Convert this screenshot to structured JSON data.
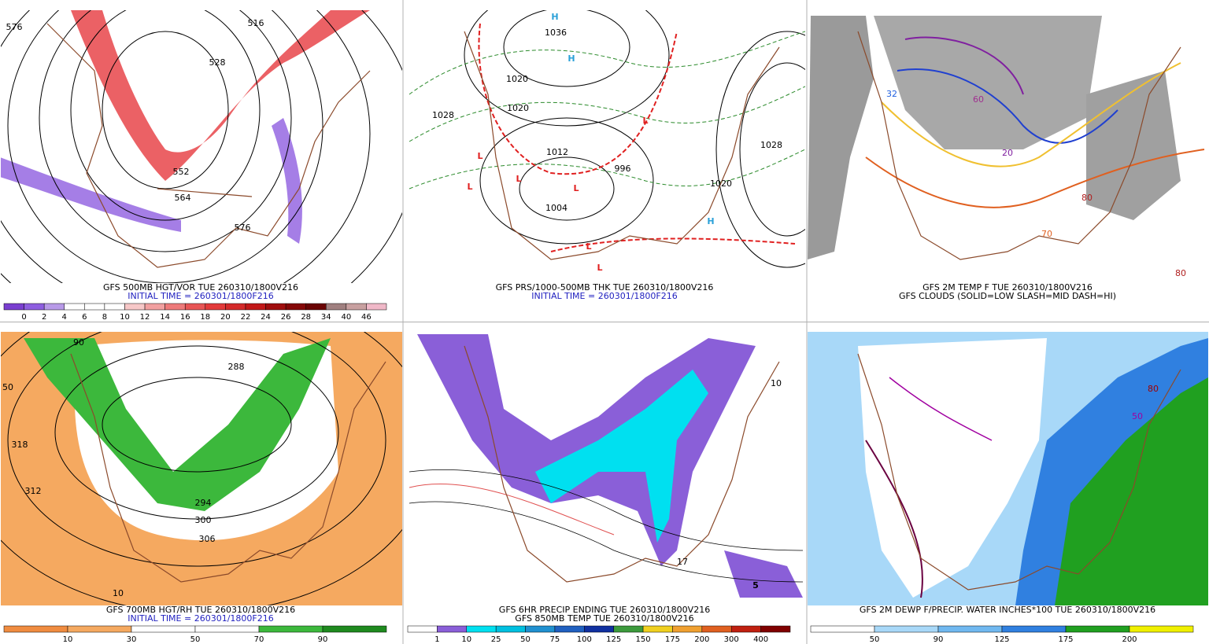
{
  "panels": [
    {
      "captions": [
        {
          "text": "GFS 500MB HGT/VOR TUE 260310/1800V216",
          "color": "#000000"
        },
        {
          "text": "INITIAL TIME = 260301/1800F216",
          "color": "#1f1fbf"
        }
      ],
      "colorbar": {
        "labels": [
          0,
          2,
          4,
          6,
          8,
          10,
          12,
          14,
          16,
          18,
          20,
          22,
          24,
          26,
          28,
          34,
          40,
          46
        ],
        "colors": [
          "#7a3fd0",
          "#8e5ee0",
          "#b89ae8",
          "#ffffff",
          "#ffffff",
          "#ffffff",
          "#f7c8c8",
          "#f2a0a0",
          "#ee7a7a",
          "#e85555",
          "#e33a3a",
          "#d42a2a",
          "#c21818",
          "#a00e0e",
          "#850808",
          "#6a0404",
          "#a08080",
          "#c8a0a0",
          "#f0b8c8"
        ]
      },
      "map_labels": [
        {
          "text": "576",
          "color": "#000000"
        },
        {
          "text": "516",
          "color": "#000000"
        },
        {
          "text": "528",
          "color": "#000000"
        },
        {
          "text": "552",
          "color": "#000000"
        },
        {
          "text": "564",
          "color": "#000000"
        },
        {
          "text": "576",
          "color": "#000000"
        }
      ]
    },
    {
      "captions": [
        {
          "text": "GFS PRS/1000-500MB THK TUE 260310/1800V216",
          "color": "#000000"
        },
        {
          "text": "INITIAL TIME = 260301/1800F216",
          "color": "#1f1fbf"
        }
      ],
      "map_labels": [
        {
          "text": "H",
          "color": "#2aa0d8"
        },
        {
          "text": "1036",
          "color": "#000000"
        },
        {
          "text": "H",
          "color": "#2aa0d8"
        },
        {
          "text": "1020",
          "color": "#000000"
        },
        {
          "text": "1028",
          "color": "#000000"
        },
        {
          "text": "1020",
          "color": "#000000"
        },
        {
          "text": "L",
          "color": "#e02020"
        },
        {
          "text": "L",
          "color": "#e02020"
        },
        {
          "text": "L",
          "color": "#e02020"
        },
        {
          "text": "L",
          "color": "#e02020"
        },
        {
          "text": "1012",
          "color": "#000000"
        },
        {
          "text": "1004",
          "color": "#000000"
        },
        {
          "text": "996",
          "color": "#000000"
        },
        {
          "text": "L",
          "color": "#e02020"
        },
        {
          "text": "1028",
          "color": "#000000"
        },
        {
          "text": "1020",
          "color": "#000000"
        },
        {
          "text": "H",
          "color": "#2aa0d8"
        },
        {
          "text": "L",
          "color": "#e02020"
        },
        {
          "text": "L",
          "color": "#e02020"
        }
      ]
    },
    {
      "captions": [
        {
          "text": "GFS 2M TEMP F TUE 260310/1800V216",
          "color": "#000000"
        },
        {
          "text": "GFS CLOUDS (SOLID=LOW SLASH=MID DASH=HI)",
          "color": "#000000"
        }
      ],
      "map_labels": [
        {
          "text": "32",
          "color": "#2060e0"
        },
        {
          "text": "20",
          "color": "#8020a0"
        },
        {
          "text": "60",
          "color": "#a03090"
        },
        {
          "text": "80",
          "color": "#b02020"
        },
        {
          "text": "70",
          "color": "#e06020"
        },
        {
          "text": "80",
          "color": "#b02020"
        }
      ]
    },
    {
      "captions": [
        {
          "text": "GFS 700MB HGT/RH TUE 260310/1800V216",
          "color": "#000000"
        },
        {
          "text": "INITIAL TIME = 260301/1800F216",
          "color": "#1f1fbf"
        }
      ],
      "colorbar": {
        "labels": [
          10,
          30,
          50,
          70,
          90
        ],
        "colors": [
          "#f08c40",
          "#f5a960",
          "#ffffff",
          "#ffffff",
          "#3cb83c",
          "#1f8a1f"
        ]
      },
      "map_labels": [
        {
          "text": "318",
          "color": "#000000"
        },
        {
          "text": "312",
          "color": "#000000"
        },
        {
          "text": "288",
          "color": "#000000"
        },
        {
          "text": "294",
          "color": "#000000"
        },
        {
          "text": "300",
          "color": "#000000"
        },
        {
          "text": "306",
          "color": "#000000"
        },
        {
          "text": "50",
          "color": "#000000"
        },
        {
          "text": "90",
          "color": "#000000"
        },
        {
          "text": "10",
          "color": "#000000"
        }
      ]
    },
    {
      "captions": [
        {
          "text": "GFS 6HR PRECIP ENDING TUE 260310/1800V216",
          "color": "#000000"
        },
        {
          "text": "GFS 850MB TEMP TUE 260310/1800V216",
          "color": "#000000"
        }
      ],
      "colorbar": {
        "labels": [
          1,
          10,
          25,
          50,
          75,
          100,
          125,
          150,
          175,
          200,
          300,
          400
        ],
        "colors": [
          "#ffffff",
          "#8a5fd8",
          "#00e0f0",
          "#00c0e0",
          "#2090d0",
          "#2060c0",
          "#1030a0",
          "#3c9a3c",
          "#f0d020",
          "#f0a030",
          "#e06020",
          "#c02010",
          "#800000"
        ]
      },
      "map_labels": [
        {
          "text": "17",
          "color": "#000000"
        },
        {
          "text": "10",
          "color": "#000000"
        },
        {
          "text": "5",
          "color": "#000000"
        }
      ]
    },
    {
      "captions": [
        {
          "text": "GFS 2M DEWP F/PRECIP. WATER INCHES*100 TUE 260310/1800V216",
          "color": "#000000"
        }
      ],
      "colorbar": {
        "labels": [
          50,
          90,
          125,
          175,
          200
        ],
        "colors": [
          "#ffffff",
          "#a8d8f8",
          "#70b8f0",
          "#3080e0",
          "#20a020",
          "#f0f000"
        ]
      },
      "map_labels": [
        {
          "text": "50",
          "color": "#a000a0"
        },
        {
          "text": "80",
          "color": "#a00000"
        }
      ]
    }
  ]
}
